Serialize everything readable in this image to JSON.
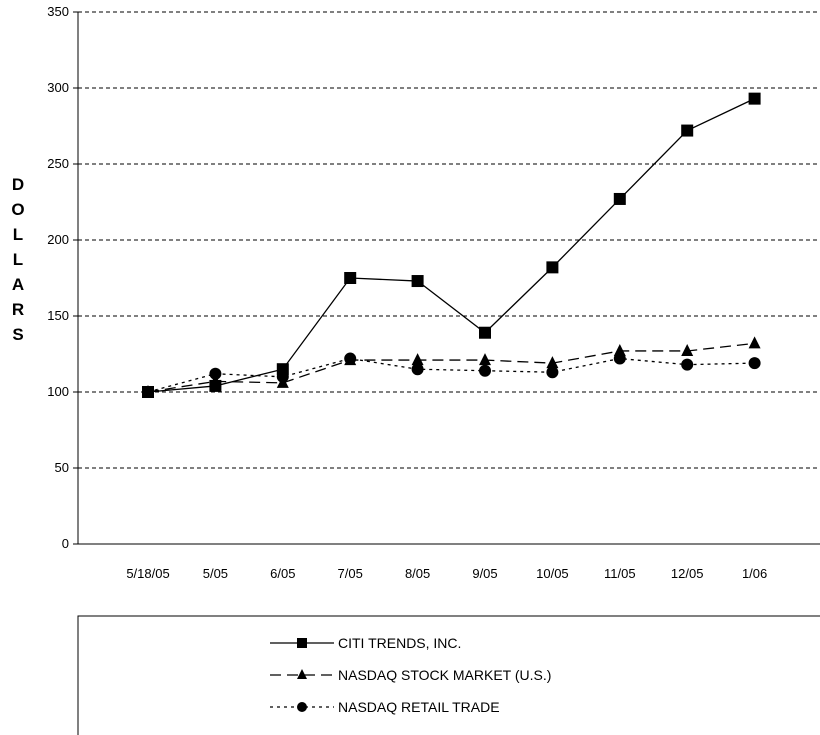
{
  "chart_data": {
    "type": "line",
    "title": "",
    "xlabel": "",
    "ylabel": "DOLLARS",
    "ylabel_letters": [
      "D",
      "O",
      "L",
      "L",
      "A",
      "R",
      "S"
    ],
    "categories": [
      "5/18/05",
      "5/05",
      "6/05",
      "7/05",
      "8/05",
      "9/05",
      "10/05",
      "11/05",
      "12/05",
      "1/06"
    ],
    "ylim": [
      0,
      350
    ],
    "yticks": [
      0,
      50,
      100,
      150,
      200,
      250,
      300,
      350
    ],
    "grid": "horizontal dashed",
    "legend_position": "bottom",
    "series": [
      {
        "name": "CITI TRENDS, INC.",
        "marker": "square",
        "line": "solid",
        "values": [
          100,
          104,
          115,
          175,
          173,
          139,
          182,
          227,
          272,
          293
        ]
      },
      {
        "name": "NASDAQ STOCK MARKET (U.S.)",
        "marker": "triangle",
        "line": "dashed",
        "values": [
          100,
          107,
          106,
          121,
          121,
          121,
          119,
          127,
          127,
          132
        ]
      },
      {
        "name": "NASDAQ RETAIL TRADE",
        "marker": "circle",
        "line": "dotted",
        "values": [
          100,
          112,
          110,
          122,
          115,
          114,
          113,
          122,
          118,
          119
        ]
      }
    ]
  }
}
